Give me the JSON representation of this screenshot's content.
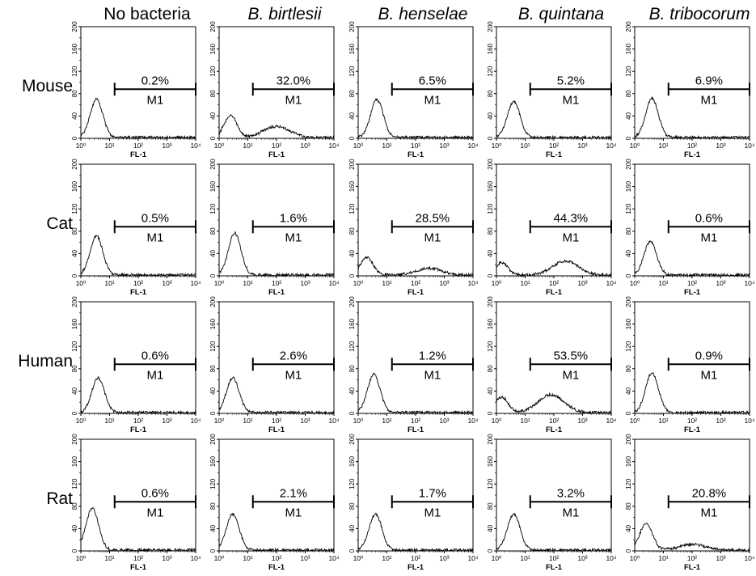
{
  "figure": {
    "columns": [
      {
        "label": "No bacteria",
        "italic": false
      },
      {
        "label": "B. birtlesii",
        "italic": true
      },
      {
        "label": "B. henselae",
        "italic": true
      },
      {
        "label": "B. quintana",
        "italic": true
      },
      {
        "label": "B. tribocorum",
        "italic": true
      }
    ],
    "rows": [
      "Mouse",
      "Cat",
      "Human",
      "Rat"
    ]
  },
  "chart_data": {
    "type": "histogram-grid",
    "x_axis": {
      "label": "FL-1",
      "scale": "log",
      "range": [
        1,
        10000
      ],
      "tick_labels": [
        "10⁰",
        "10¹",
        "10²",
        "10³",
        "10⁴"
      ]
    },
    "y_axis": {
      "range": [
        0,
        200
      ],
      "tick_labels": [
        "0",
        "40",
        "80",
        "120",
        "160",
        "200"
      ]
    },
    "gate": {
      "label": "M1",
      "range": [
        15,
        10000
      ],
      "height": 88
    },
    "line_color": "#000000",
    "panels": [
      {
        "row": "Mouse",
        "column": "No bacteria",
        "percent": "0.2%",
        "peak_x": 3.5,
        "peak_y": 68,
        "second_peak_x": null,
        "second_peak_y": 0
      },
      {
        "row": "Mouse",
        "column": "B. birtlesii",
        "percent": "32.0%",
        "peak_x": 2.5,
        "peak_y": 40,
        "second_peak_x": 100,
        "second_peak_y": 20
      },
      {
        "row": "Mouse",
        "column": "B. henselae",
        "percent": "6.5%",
        "peak_x": 4.5,
        "peak_y": 68,
        "second_peak_x": null,
        "second_peak_y": 0
      },
      {
        "row": "Mouse",
        "column": "B. quintana",
        "percent": "5.2%",
        "peak_x": 4.0,
        "peak_y": 65,
        "second_peak_x": null,
        "second_peak_y": 0
      },
      {
        "row": "Mouse",
        "column": "B. tribocorum",
        "percent": "6.9%",
        "peak_x": 4.0,
        "peak_y": 70,
        "second_peak_x": null,
        "second_peak_y": 0
      },
      {
        "row": "Cat",
        "column": "No bacteria",
        "percent": "0.5%",
        "peak_x": 3.5,
        "peak_y": 70,
        "second_peak_x": null,
        "second_peak_y": 0
      },
      {
        "row": "Cat",
        "column": "B. birtlesii",
        "percent": "1.6%",
        "peak_x": 3.5,
        "peak_y": 75,
        "second_peak_x": null,
        "second_peak_y": 0
      },
      {
        "row": "Cat",
        "column": "B. henselae",
        "percent": "28.5%",
        "peak_x": 2.0,
        "peak_y": 32,
        "second_peak_x": 300,
        "second_peak_y": 12
      },
      {
        "row": "Cat",
        "column": "B. quintana",
        "percent": "44.3%",
        "peak_x": 1.5,
        "peak_y": 22,
        "second_peak_x": 250,
        "second_peak_y": 25
      },
      {
        "row": "Cat",
        "column": "B. tribocorum",
        "percent": "0.6%",
        "peak_x": 3.5,
        "peak_y": 60,
        "second_peak_x": null,
        "second_peak_y": 0
      },
      {
        "row": "Human",
        "column": "No bacteria",
        "percent": "0.6%",
        "peak_x": 4.0,
        "peak_y": 62,
        "second_peak_x": null,
        "second_peak_y": 0
      },
      {
        "row": "Human",
        "column": "B. birtlesii",
        "percent": "2.6%",
        "peak_x": 3.0,
        "peak_y": 62,
        "second_peak_x": null,
        "second_peak_y": 0
      },
      {
        "row": "Human",
        "column": "B. henselae",
        "percent": "1.2%",
        "peak_x": 3.5,
        "peak_y": 68,
        "second_peak_x": null,
        "second_peak_y": 0
      },
      {
        "row": "Human",
        "column": "B. quintana",
        "percent": "53.5%",
        "peak_x": 1.5,
        "peak_y": 28,
        "second_peak_x": 80,
        "second_peak_y": 32
      },
      {
        "row": "Human",
        "column": "B. tribocorum",
        "percent": "0.9%",
        "peak_x": 4.0,
        "peak_y": 72,
        "second_peak_x": null,
        "second_peak_y": 0
      },
      {
        "row": "Rat",
        "column": "No bacteria",
        "percent": "0.6%",
        "peak_x": 2.5,
        "peak_y": 75,
        "second_peak_x": null,
        "second_peak_y": 0
      },
      {
        "row": "Rat",
        "column": "B. birtlesii",
        "percent": "2.1%",
        "peak_x": 3.0,
        "peak_y": 65,
        "second_peak_x": null,
        "second_peak_y": 0
      },
      {
        "row": "Rat",
        "column": "B. henselae",
        "percent": "1.7%",
        "peak_x": 4.0,
        "peak_y": 65,
        "second_peak_x": null,
        "second_peak_y": 0
      },
      {
        "row": "Rat",
        "column": "B. quintana",
        "percent": "3.2%",
        "peak_x": 4.0,
        "peak_y": 65,
        "second_peak_x": null,
        "second_peak_y": 0
      },
      {
        "row": "Rat",
        "column": "B. tribocorum",
        "percent": "20.8%",
        "peak_x": 2.5,
        "peak_y": 48,
        "second_peak_x": 100,
        "second_peak_y": 10
      }
    ]
  }
}
